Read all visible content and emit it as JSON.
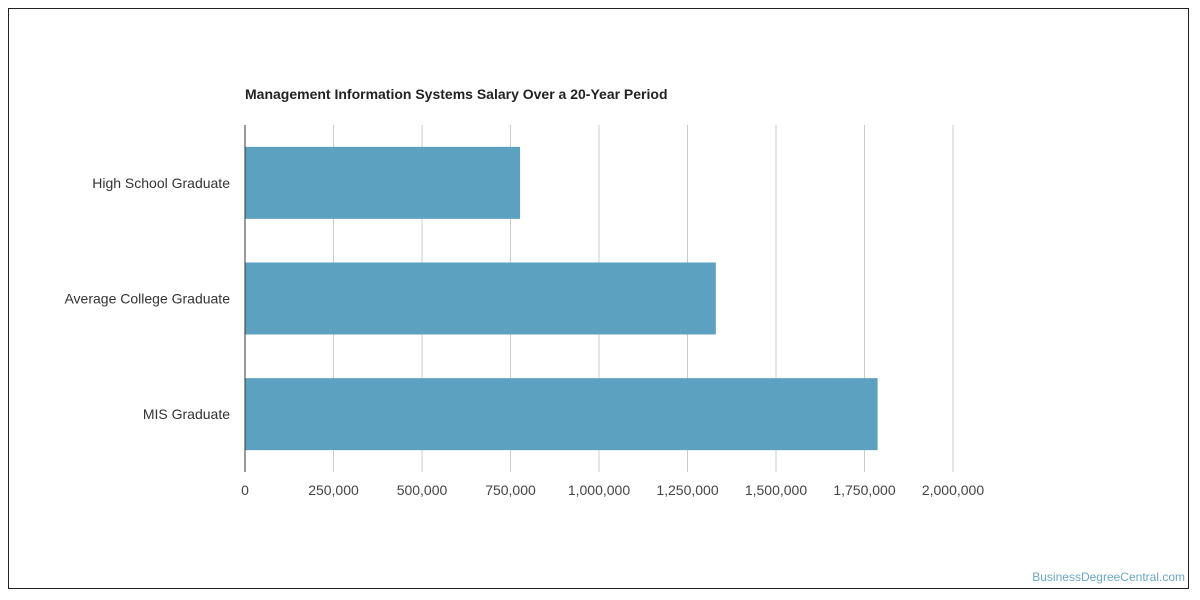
{
  "chart_data": {
    "type": "bar",
    "orientation": "horizontal",
    "title": "Management Information Systems Salary Over a 20-Year Period",
    "categories": [
      "High School Graduate",
      "Average College Graduate",
      "MIS Graduate"
    ],
    "values": [
      777000,
      1330000,
      1787000
    ],
    "xlim": [
      0,
      2000000
    ],
    "xticks": [
      0,
      250000,
      500000,
      750000,
      1000000,
      1250000,
      1500000,
      1750000,
      2000000
    ],
    "xtick_labels": [
      "0",
      "250,000",
      "500,000",
      "750,000",
      "1,000,000",
      "1,250,000",
      "1,500,000",
      "1,750,000",
      "2,000,000"
    ],
    "xlabel": "",
    "ylabel": "",
    "grid": "vertical",
    "bar_color": "#5ca1bf"
  },
  "watermark": "BusinessDegreeCentral.com"
}
